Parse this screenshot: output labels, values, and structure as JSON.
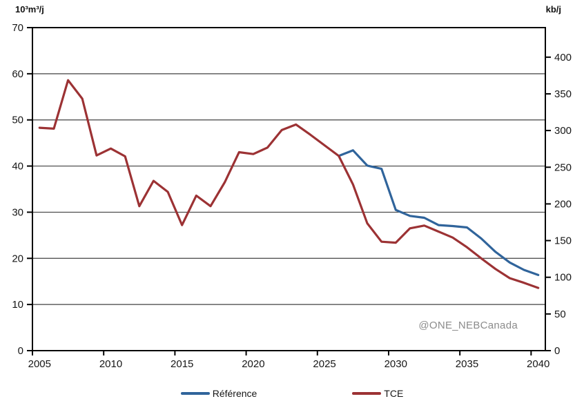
{
  "page": {
    "watermark": "@ONE_NEBCanada"
  },
  "chart": {
    "left_axis_unit": "10³m³/j",
    "right_axis_unit": "kb/j",
    "legend": [
      {
        "key": "reference",
        "label": "Référence",
        "color": "#30649B"
      },
      {
        "key": "tce",
        "label": "TCE",
        "color": "#9C3234"
      }
    ]
  },
  "chart_data": {
    "type": "line",
    "title": "",
    "x": [
      2005,
      2006,
      2007,
      2008,
      2009,
      2010,
      2011,
      2012,
      2013,
      2014,
      2015,
      2016,
      2017,
      2018,
      2019,
      2020,
      2021,
      2022,
      2023,
      2024,
      2025,
      2026,
      2027,
      2028,
      2029,
      2030,
      2031,
      2032,
      2033,
      2034,
      2035,
      2036,
      2037,
      2038,
      2039,
      2040
    ],
    "series": [
      {
        "name": "Référence",
        "key": "reference",
        "color": "#30649B",
        "values": [
          null,
          null,
          null,
          null,
          null,
          null,
          null,
          null,
          null,
          null,
          null,
          null,
          null,
          null,
          null,
          null,
          null,
          null,
          null,
          null,
          null,
          42.2,
          43.4,
          40.1,
          39.4,
          30.5,
          29.2,
          28.8,
          27.2,
          27.0,
          26.7,
          24.3,
          21.4,
          19.1,
          17.5,
          16.4
        ]
      },
      {
        "name": "TCE",
        "key": "tce",
        "color": "#9C3234",
        "values": [
          48.3,
          48.1,
          58.6,
          54.6,
          42.3,
          43.8,
          42.1,
          31.3,
          36.8,
          34.4,
          27.2,
          33.6,
          31.3,
          36.5,
          43.0,
          42.6,
          44.0,
          47.8,
          49.0,
          46.8,
          44.5,
          42.2,
          36.0,
          27.6,
          23.6,
          23.4,
          26.5,
          27.1,
          25.8,
          24.5,
          22.4,
          20.0,
          17.7,
          15.7,
          14.7,
          13.6
        ]
      }
    ],
    "left_axis": {
      "label": "10³m³/j",
      "min": 0,
      "max": 70,
      "ticks": [
        0,
        10,
        20,
        30,
        40,
        50,
        60,
        70
      ]
    },
    "right_axis": {
      "label": "kb/j",
      "min": 0,
      "max": 440.3,
      "ticks": [
        0,
        50,
        100,
        150,
        200,
        250,
        300,
        350,
        400
      ],
      "conversion_factor": 6.2898
    },
    "x_axis": {
      "tick_years": [
        2005,
        2010,
        2015,
        2020,
        2025,
        2030,
        2035,
        2040
      ]
    },
    "grid": "horizontal-only",
    "legend_position": "bottom"
  }
}
